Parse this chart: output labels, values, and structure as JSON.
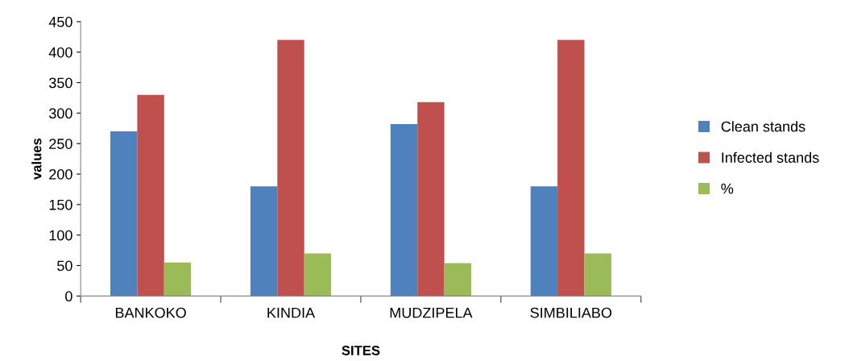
{
  "chart_data": {
    "type": "bar",
    "xlabel": "SITES",
    "ylabel": "values",
    "categories": [
      "BANKOKO",
      "KINDIA",
      "MUDZIPELA",
      "SIMBILIABO"
    ],
    "series": [
      {
        "name": "Clean stands",
        "color": "#4f81bd",
        "values": [
          270,
          180,
          282,
          180
        ]
      },
      {
        "name": "Infected stands",
        "color": "#c0504d",
        "values": [
          330,
          420,
          318,
          420
        ]
      },
      {
        "name": "%",
        "color": "#9bbb59",
        "values": [
          55,
          70,
          54,
          70
        ]
      }
    ],
    "ylim": [
      0,
      450
    ],
    "yticks": [
      0,
      50,
      100,
      150,
      200,
      250,
      300,
      350,
      400,
      450
    ],
    "grid": false,
    "legend": "right"
  }
}
